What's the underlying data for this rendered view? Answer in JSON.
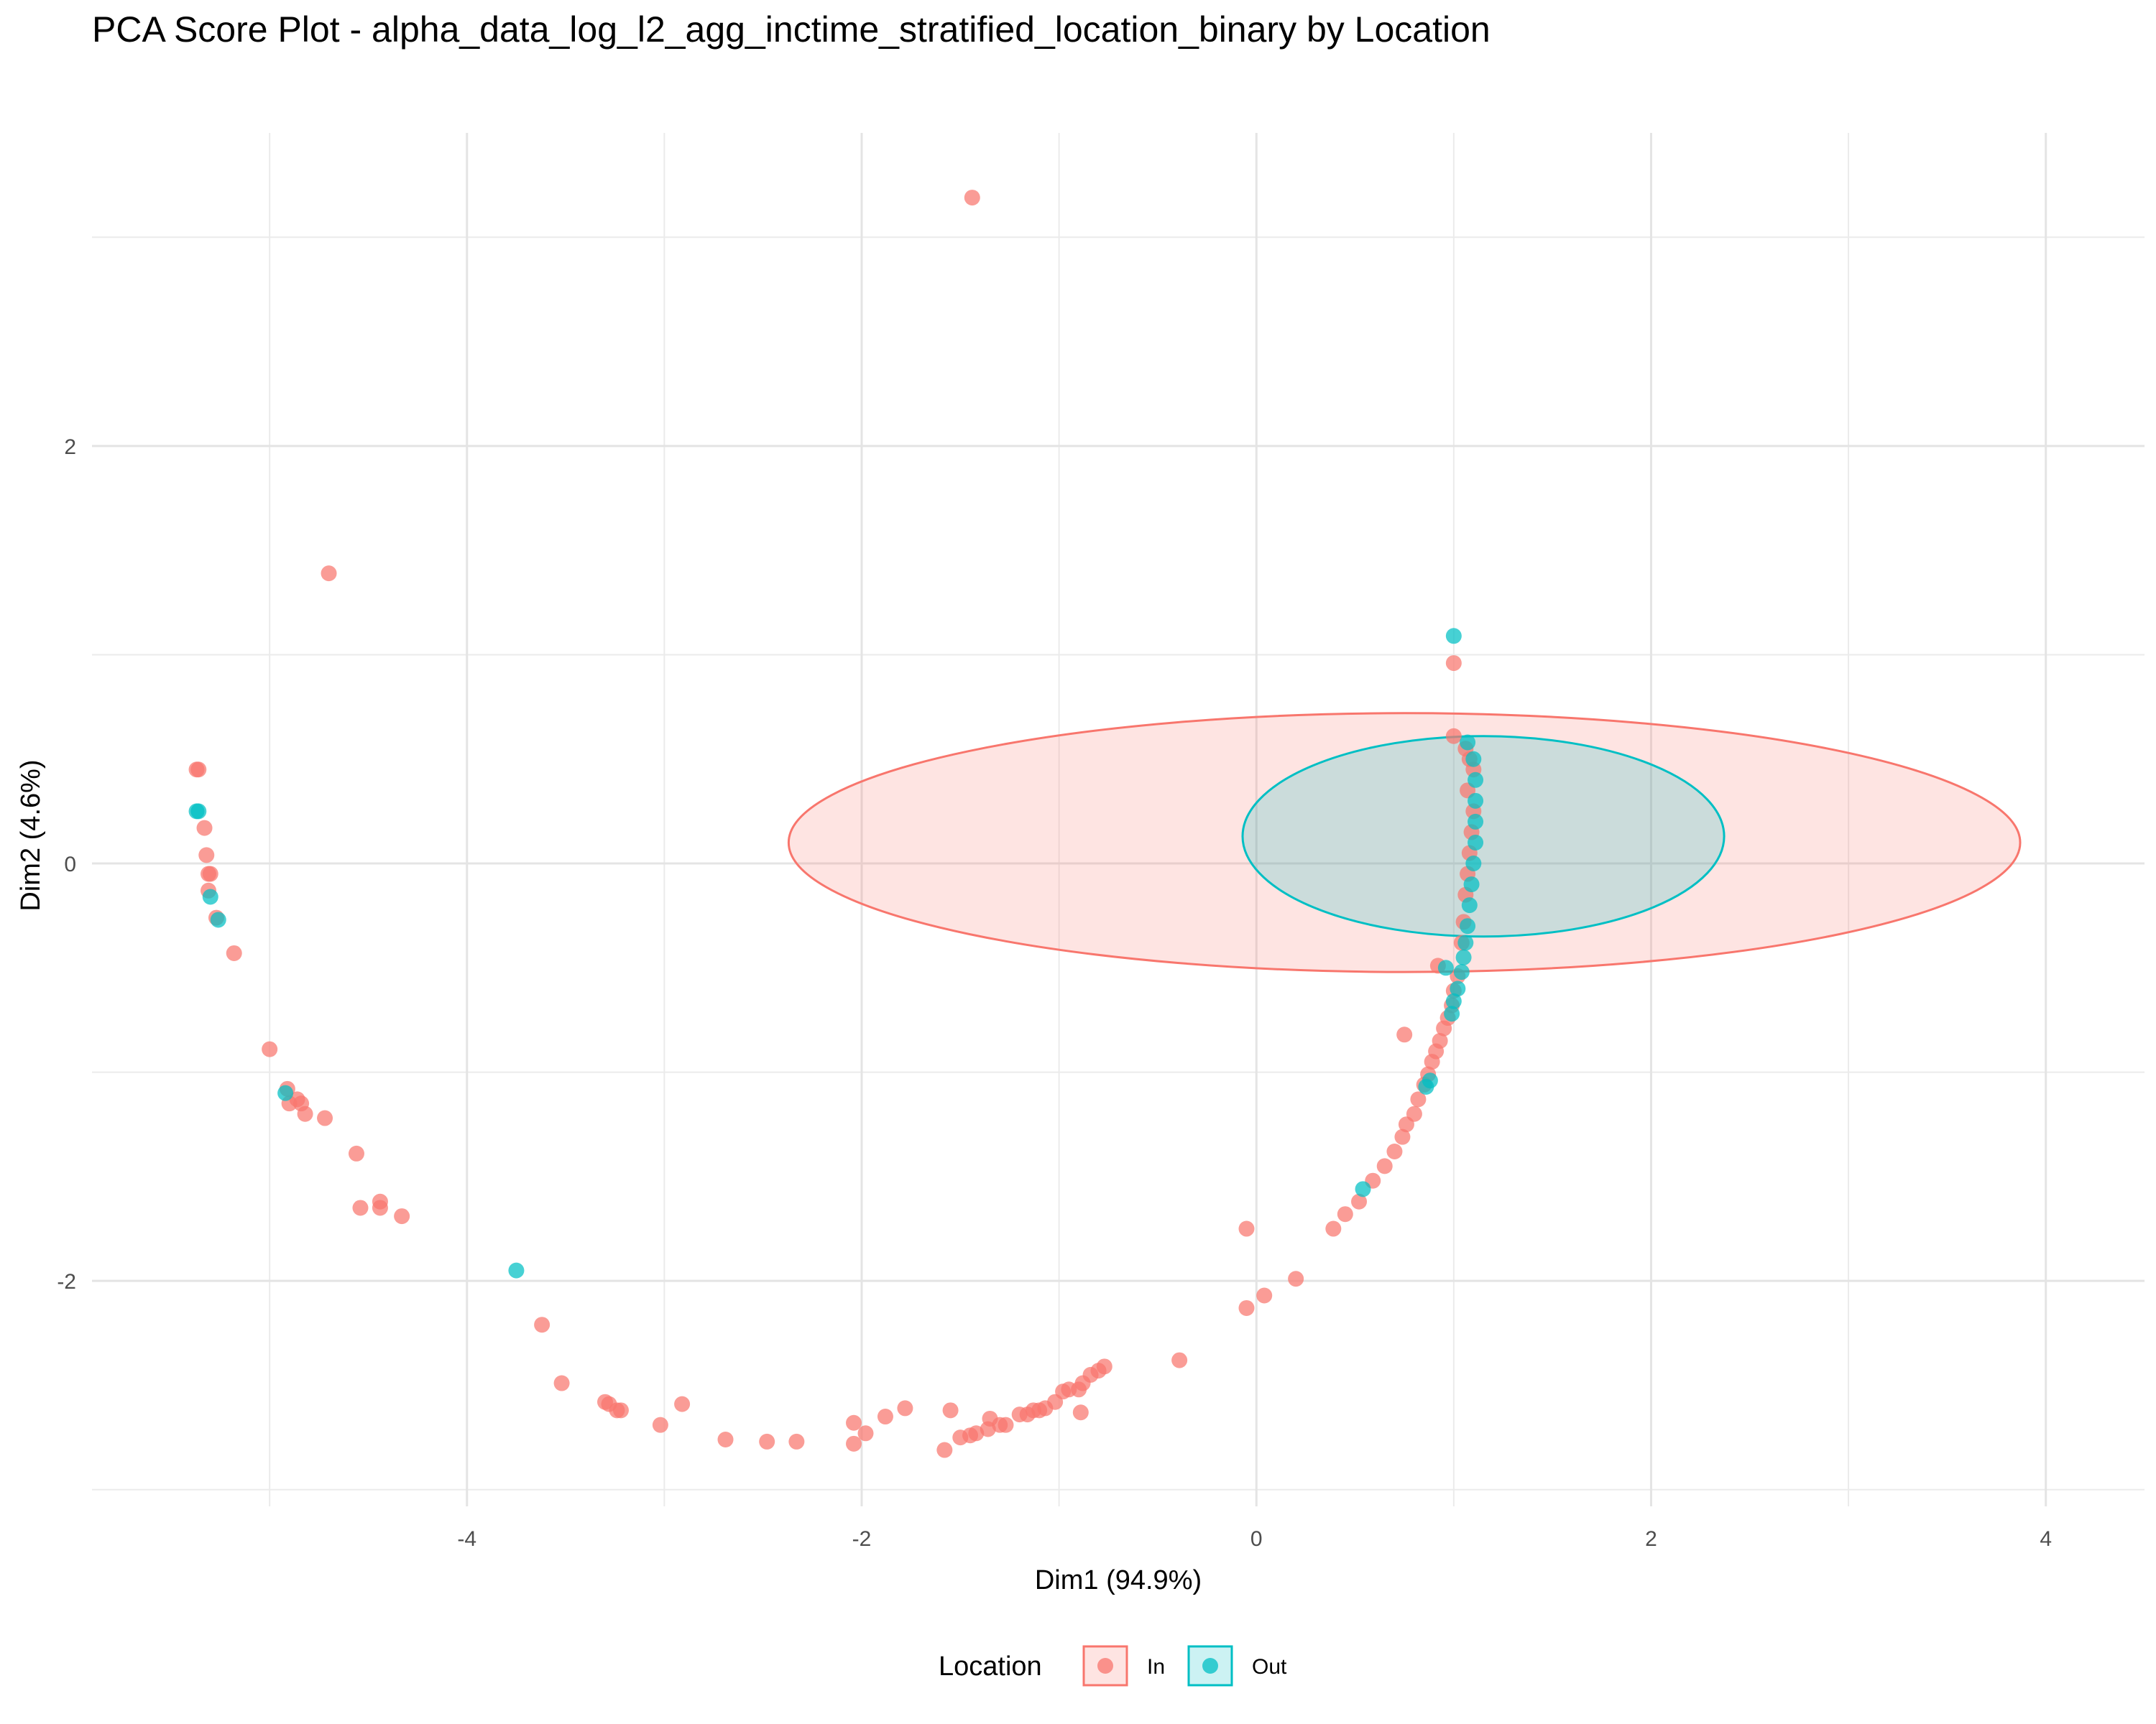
{
  "chart_data": {
    "type": "scatter",
    "title": "PCA Score Plot - alpha_data_log_l2_agg_inctime_stratified_location_binary by Location",
    "xlabel": "Dim1 (94.9%)",
    "ylabel": "Dim2 (4.6%)",
    "xlim": [
      -5.9,
      4.5
    ],
    "ylim": [
      -3.08,
      3.5
    ],
    "xticks": [
      -4,
      -2,
      0,
      2,
      4
    ],
    "yticks": [
      -2,
      0,
      2
    ],
    "xtick_labels": [
      "-4",
      "-2",
      "0",
      "2",
      "4"
    ],
    "ytick_labels": [
      "-2",
      "0",
      "2"
    ],
    "grid": true,
    "legend": {
      "title": "Location",
      "position": "bottom"
    },
    "series": [
      {
        "name": "In",
        "color": "#F8766D",
        "ellipse": {
          "cx": 0.75,
          "cy": 0.1,
          "rx": 3.12,
          "ry": 0.62
        },
        "points": [
          [
            -1.44,
            3.19
          ],
          [
            -4.7,
            1.39
          ],
          [
            1.0,
            0.96
          ],
          [
            1.0,
            0.61
          ],
          [
            1.08,
            0.5
          ],
          [
            1.06,
            0.55
          ],
          [
            1.1,
            0.45
          ],
          [
            1.07,
            0.35
          ],
          [
            1.1,
            0.25
          ],
          [
            1.09,
            0.15
          ],
          [
            1.08,
            0.05
          ],
          [
            1.07,
            -0.05
          ],
          [
            1.06,
            -0.15
          ],
          [
            1.05,
            -0.28
          ],
          [
            1.04,
            -0.38
          ],
          [
            -5.36,
            0.45
          ],
          [
            -5.37,
            0.45
          ],
          [
            -5.33,
            0.17
          ],
          [
            -5.32,
            0.04
          ],
          [
            -5.31,
            -0.05
          ],
          [
            -5.3,
            -0.05
          ],
          [
            -5.31,
            -0.13
          ],
          [
            -5.27,
            -0.26
          ],
          [
            -5.18,
            -0.43
          ],
          [
            -5.0,
            -0.89
          ],
          [
            -4.91,
            -1.08
          ],
          [
            -4.9,
            -1.15
          ],
          [
            -4.86,
            -1.13
          ],
          [
            -4.84,
            -1.15
          ],
          [
            -4.82,
            -1.2
          ],
          [
            -4.72,
            -1.22
          ],
          [
            -4.56,
            -1.39
          ],
          [
            -4.54,
            -1.65
          ],
          [
            -4.44,
            -1.62
          ],
          [
            -4.44,
            -1.65
          ],
          [
            -4.33,
            -1.69
          ],
          [
            -3.62,
            -2.21
          ],
          [
            -3.52,
            -2.49
          ],
          [
            -3.3,
            -2.58
          ],
          [
            -3.28,
            -2.59
          ],
          [
            -3.24,
            -2.62
          ],
          [
            -3.22,
            -2.62
          ],
          [
            -3.02,
            -2.69
          ],
          [
            -2.91,
            -2.59
          ],
          [
            -2.69,
            -2.76
          ],
          [
            -2.48,
            -2.77
          ],
          [
            -2.33,
            -2.77
          ],
          [
            -2.04,
            -2.68
          ],
          [
            -2.04,
            -2.78
          ],
          [
            -1.98,
            -2.73
          ],
          [
            -1.88,
            -2.65
          ],
          [
            -1.78,
            -2.61
          ],
          [
            -1.58,
            -2.81
          ],
          [
            -1.55,
            -2.62
          ],
          [
            -1.5,
            -2.75
          ],
          [
            -1.45,
            -2.74
          ],
          [
            -1.42,
            -2.73
          ],
          [
            -1.36,
            -2.71
          ],
          [
            -1.35,
            -2.66
          ],
          [
            -1.3,
            -2.69
          ],
          [
            -1.27,
            -2.69
          ],
          [
            -1.2,
            -2.64
          ],
          [
            -1.16,
            -2.64
          ],
          [
            -1.13,
            -2.62
          ],
          [
            -1.1,
            -2.62
          ],
          [
            -1.07,
            -2.61
          ],
          [
            -1.02,
            -2.58
          ],
          [
            -0.98,
            -2.53
          ],
          [
            -0.95,
            -2.52
          ],
          [
            -0.9,
            -2.52
          ],
          [
            -0.88,
            -2.49
          ],
          [
            -0.89,
            -2.63
          ],
          [
            -0.84,
            -2.45
          ],
          [
            -0.8,
            -2.43
          ],
          [
            -0.77,
            -2.41
          ],
          [
            -0.39,
            -2.38
          ],
          [
            -0.05,
            -2.13
          ],
          [
            0.04,
            -2.07
          ],
          [
            0.2,
            -1.99
          ],
          [
            -0.05,
            -1.75
          ],
          [
            0.39,
            -1.75
          ],
          [
            0.45,
            -1.68
          ],
          [
            0.52,
            -1.62
          ],
          [
            0.59,
            -1.52
          ],
          [
            0.65,
            -1.45
          ],
          [
            0.7,
            -1.38
          ],
          [
            0.74,
            -1.31
          ],
          [
            0.76,
            -1.25
          ],
          [
            0.8,
            -1.2
          ],
          [
            0.82,
            -1.13
          ],
          [
            0.85,
            -1.06
          ],
          [
            0.87,
            -1.01
          ],
          [
            0.89,
            -0.95
          ],
          [
            0.91,
            -0.9
          ],
          [
            0.93,
            -0.85
          ],
          [
            0.95,
            -0.79
          ],
          [
            0.97,
            -0.74
          ],
          [
            0.99,
            -0.68
          ],
          [
            1.0,
            -0.61
          ],
          [
            1.02,
            -0.54
          ],
          [
            0.75,
            -0.82
          ],
          [
            0.92,
            -0.49
          ]
        ]
      },
      {
        "name": "Out",
        "color": "#00BFC4",
        "ellipse": {
          "cx": 1.15,
          "cy": 0.13,
          "rx": 1.22,
          "ry": 0.48
        },
        "points": [
          [
            1.0,
            1.09
          ],
          [
            1.07,
            0.58
          ],
          [
            1.1,
            0.5
          ],
          [
            1.11,
            0.4
          ],
          [
            1.11,
            0.3
          ],
          [
            1.11,
            0.2
          ],
          [
            1.11,
            0.1
          ],
          [
            1.1,
            0.0
          ],
          [
            1.09,
            -0.1
          ],
          [
            1.08,
            -0.2
          ],
          [
            1.07,
            -0.3
          ],
          [
            1.06,
            -0.38
          ],
          [
            1.05,
            -0.45
          ],
          [
            1.04,
            -0.52
          ],
          [
            1.02,
            -0.6
          ],
          [
            1.0,
            -0.66
          ],
          [
            0.99,
            -0.72
          ],
          [
            0.96,
            -0.5
          ],
          [
            -5.36,
            0.25
          ],
          [
            -5.37,
            0.25
          ],
          [
            -5.3,
            -0.16
          ],
          [
            -5.26,
            -0.27
          ],
          [
            -4.92,
            -1.1
          ],
          [
            -3.75,
            -1.95
          ],
          [
            0.54,
            -1.56
          ],
          [
            0.86,
            -1.07
          ],
          [
            0.88,
            -1.04
          ]
        ]
      }
    ]
  }
}
